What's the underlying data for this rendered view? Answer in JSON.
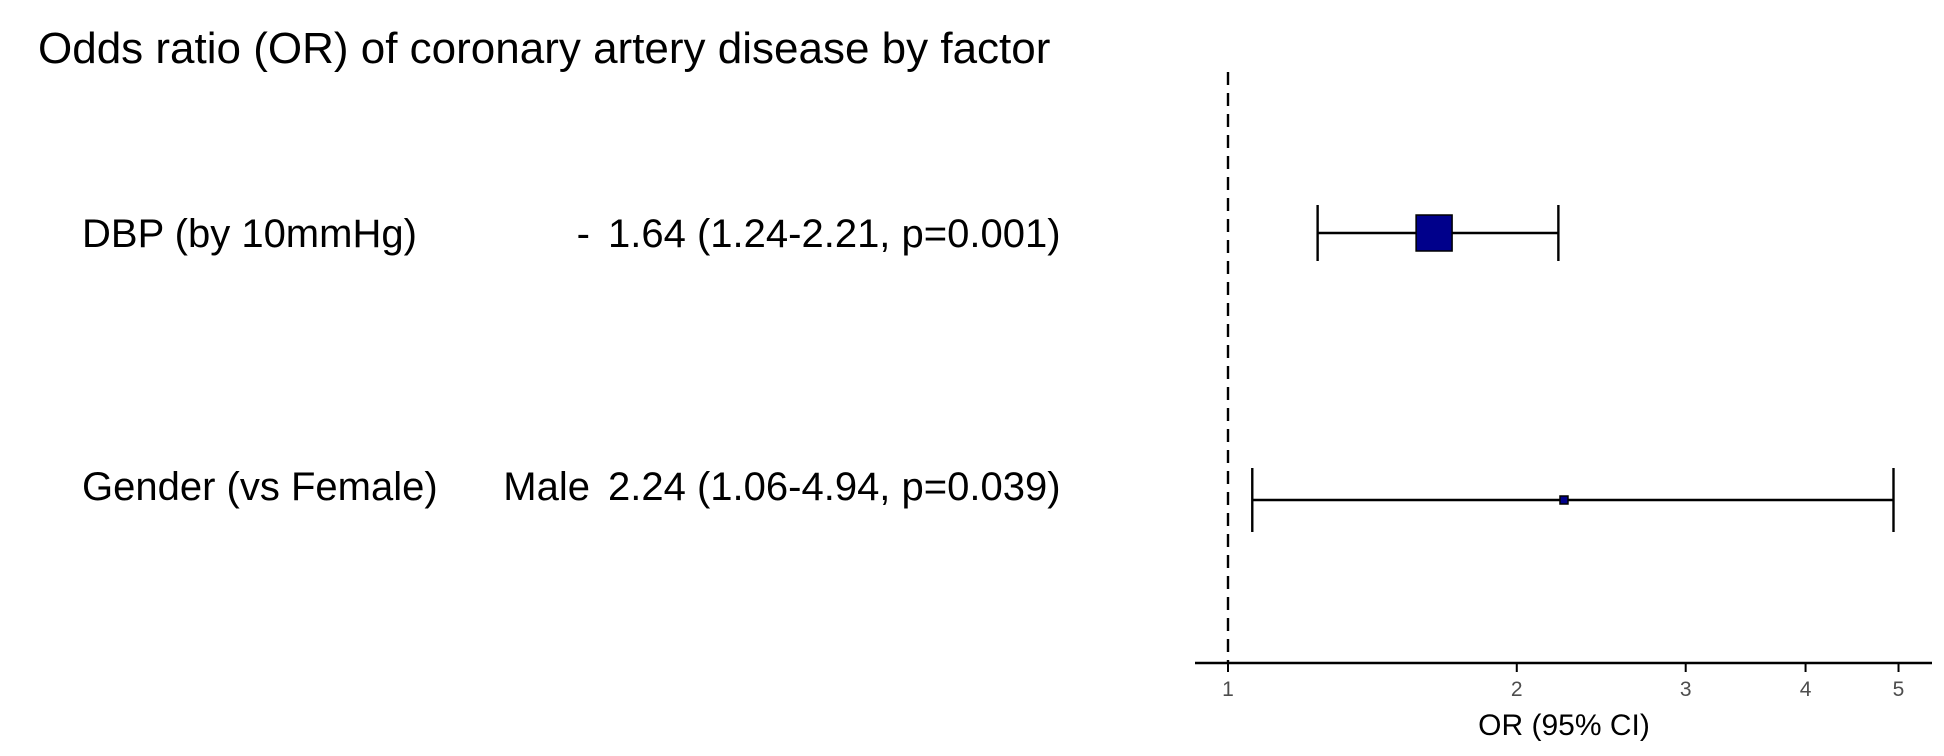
{
  "chart_data": {
    "type": "forest",
    "title": "Odds ratio (OR) of coronary artery disease by factor",
    "xlabel": "OR (95% CI)",
    "x_scale": "log",
    "xlim": [
      0.97,
      5.2
    ],
    "x_ticks": [
      1,
      2,
      3,
      4,
      5
    ],
    "x_tick_labels": [
      "1",
      "2",
      "3",
      "4",
      "5"
    ],
    "reference_line": 1,
    "grid": false,
    "rows": [
      {
        "label": "DBP (by 10mmHg)",
        "level": "-",
        "estimate_text": "1.64 (1.24-2.21, p=0.001)",
        "or": 1.64,
        "lower": 1.24,
        "upper": 2.21,
        "p": 0.001
      },
      {
        "label": "Gender (vs Female)",
        "level": "Male",
        "estimate_text": "2.24 (1.06-4.94, p=0.039)",
        "or": 2.24,
        "lower": 1.06,
        "upper": 4.94,
        "p": 0.039
      }
    ],
    "colors": {
      "point_fill": "#00008B",
      "point_stroke": "#000000",
      "line": "#000000",
      "tick_label": "#4d4d4d"
    }
  }
}
